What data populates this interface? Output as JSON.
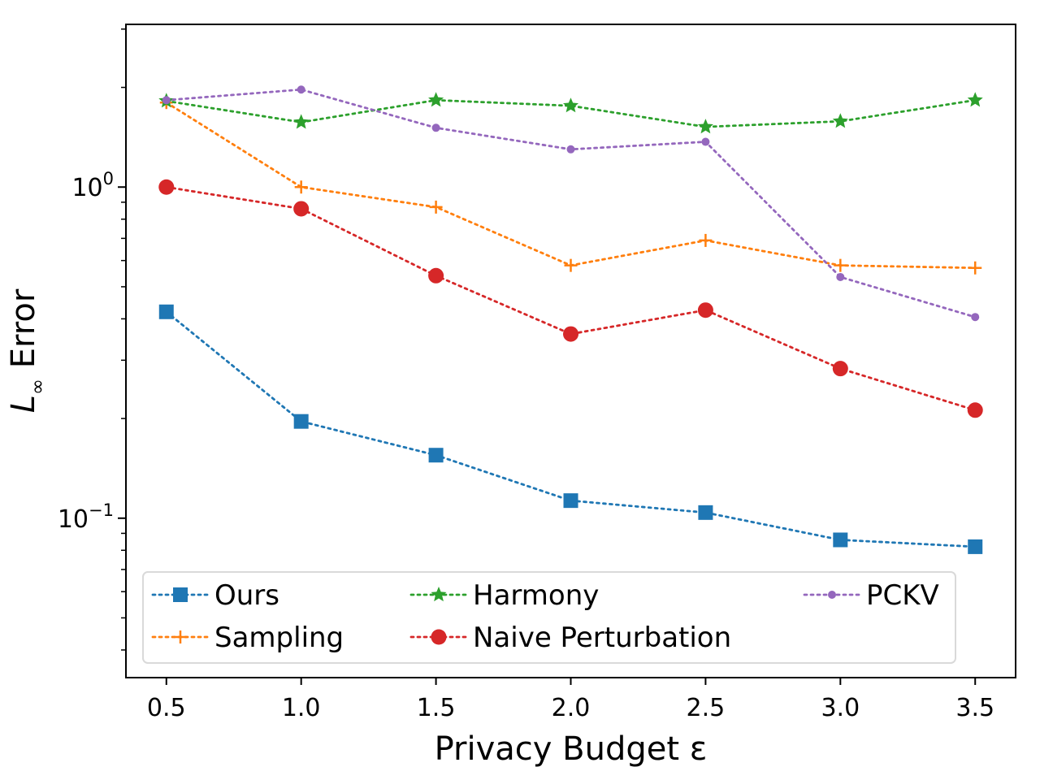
{
  "chart_data": {
    "type": "line",
    "title": "",
    "xlabel": "Privacy Budget ε",
    "ylabel": "L∞ Error",
    "ylabel_main": "L",
    "ylabel_sub": "∞",
    "ylabel_rest": " Error",
    "yscale": "log",
    "xlim": [
      0.35,
      3.65
    ],
    "ylim": [
      0.033,
      3.1
    ],
    "grid": false,
    "legend_position": "bottom",
    "x": [
      0.5,
      1.0,
      1.5,
      2.0,
      2.5,
      3.0,
      3.5
    ],
    "x_tick_labels": [
      "0.5",
      "1.0",
      "1.5",
      "2.0",
      "2.5",
      "3.0",
      "3.5"
    ],
    "y_ticks": [
      {
        "value": 1.0,
        "base": "10",
        "exp": "0"
      },
      {
        "value": 0.1,
        "base": "10",
        "exp": "−1"
      }
    ],
    "series": [
      {
        "name": "Ours",
        "color": "#1f77b4",
        "marker": "square",
        "values": [
          0.42,
          0.196,
          0.155,
          0.113,
          0.104,
          0.086,
          0.082
        ]
      },
      {
        "name": "Sampling",
        "color": "#ff7f0e",
        "marker": "plus",
        "values": [
          1.8,
          1.0,
          0.87,
          0.58,
          0.69,
          0.58,
          0.57
        ]
      },
      {
        "name": "Harmony",
        "color": "#2ca02c",
        "marker": "star",
        "values": [
          1.82,
          1.57,
          1.83,
          1.76,
          1.52,
          1.58,
          1.83
        ]
      },
      {
        "name": "Naive Perturbation",
        "color": "#d62728",
        "marker": "circle",
        "values": [
          1.0,
          0.86,
          0.54,
          0.36,
          0.425,
          0.283,
          0.212
        ]
      },
      {
        "name": "PCKV",
        "color": "#9467bd",
        "marker": "dot",
        "values": [
          1.83,
          1.97,
          1.51,
          1.3,
          1.37,
          0.535,
          0.405
        ]
      }
    ]
  }
}
